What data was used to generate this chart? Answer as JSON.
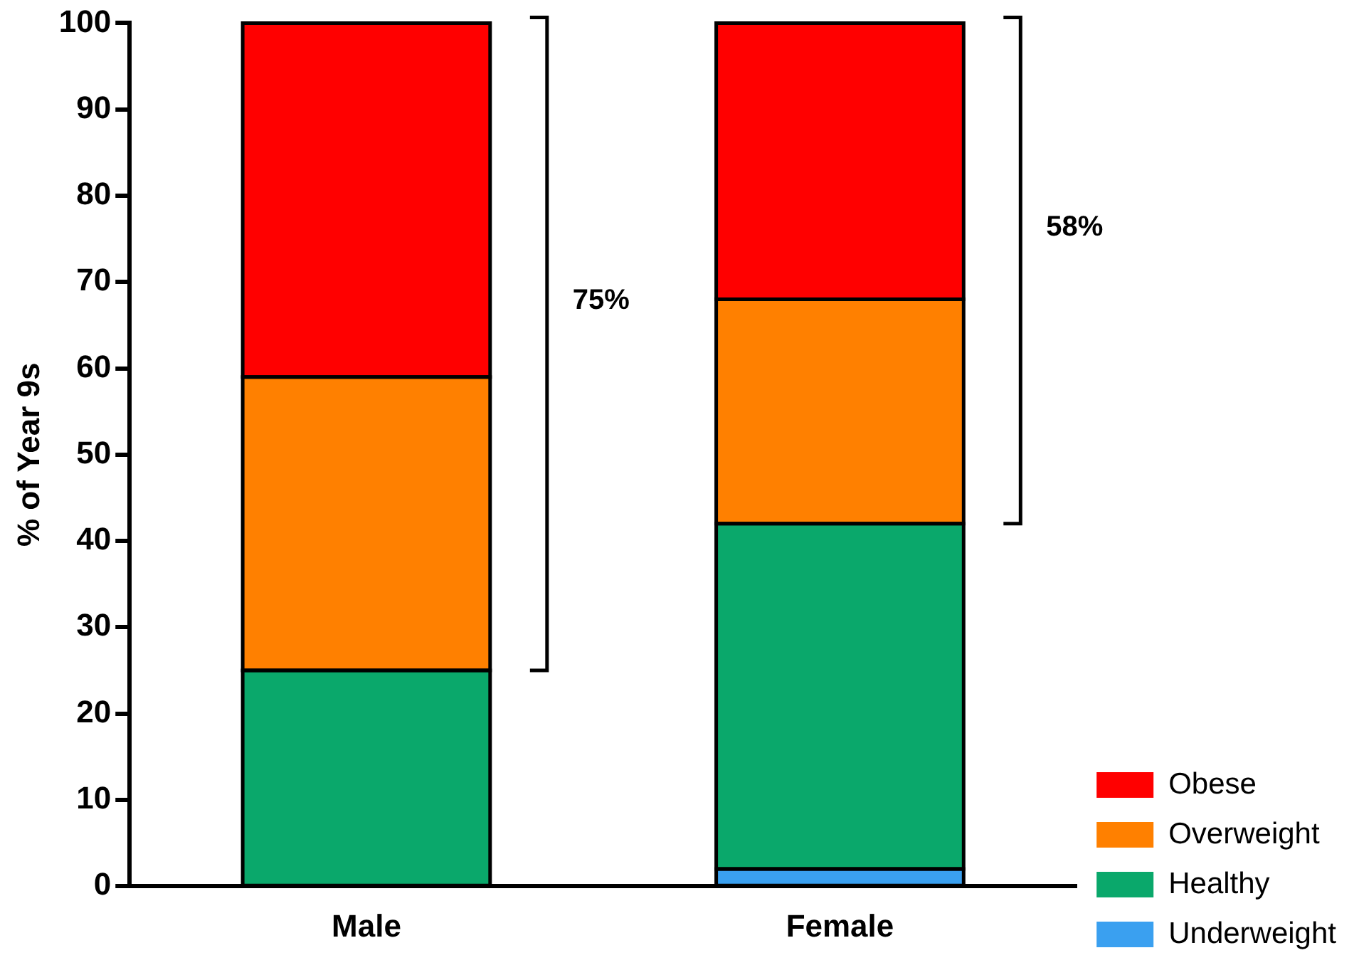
{
  "chart_data": {
    "type": "bar",
    "stacked": true,
    "ylabel": "% of Year 9s",
    "categories": [
      "Male",
      "Female"
    ],
    "series": [
      {
        "name": "Underweight",
        "color": "#3aa0f0",
        "values": [
          0,
          2
        ]
      },
      {
        "name": "Healthy",
        "color": "#0aa86b",
        "values": [
          25,
          40
        ]
      },
      {
        "name": "Overweight",
        "color": "#ff8000",
        "values": [
          34,
          26
        ]
      },
      {
        "name": "Obese",
        "color": "#ff0000",
        "values": [
          41,
          32
        ]
      }
    ],
    "ylim": [
      0,
      100
    ],
    "yticks": [
      0,
      10,
      20,
      30,
      40,
      50,
      60,
      70,
      80,
      90,
      100
    ],
    "grid": false,
    "legend": "bottom right",
    "annotations": [
      "75%",
      "58%"
    ]
  }
}
